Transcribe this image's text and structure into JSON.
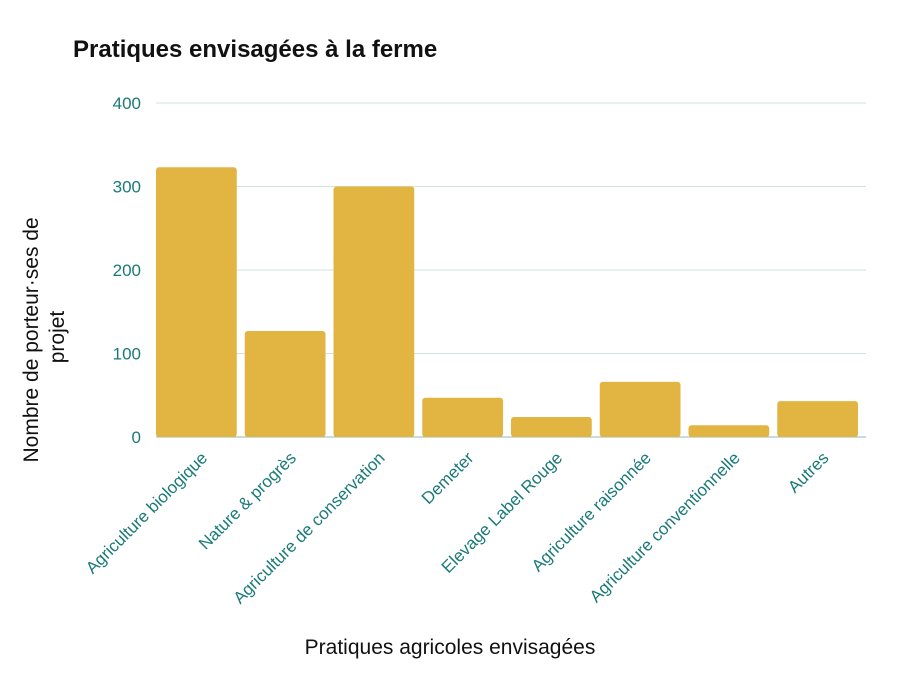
{
  "chart_data": {
    "type": "bar",
    "title": "Pratiques envisagées à la ferme",
    "xlabel": "Pratiques agricoles envisagées",
    "ylabel_lines": [
      "Nombre de porteur·ses de",
      "projet"
    ],
    "categories": [
      "Agriculture biologique",
      "Nature & progrès",
      "Agriculture de conservation",
      "Demeter",
      "Elevage Label Rouge",
      "Agriculture raisonnée",
      "Agriculture conventionnelle",
      "Autres"
    ],
    "values": [
      323,
      127,
      300,
      47,
      24,
      66,
      14,
      43
    ],
    "ylim": [
      0,
      400
    ],
    "yticks": [
      0,
      100,
      200,
      300,
      400
    ],
    "grid": true,
    "colors": {
      "bar": "#e2b543",
      "grid": "#cfe3e1",
      "tick_text": "#1a7a78",
      "baseline": "#8dbbb8"
    }
  }
}
